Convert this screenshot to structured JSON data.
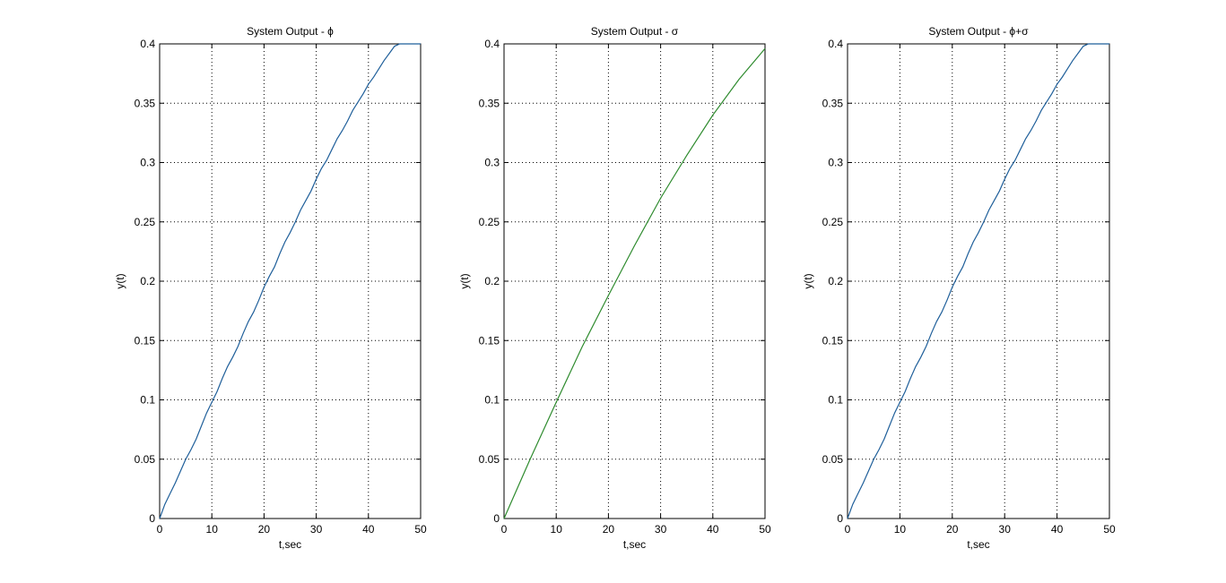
{
  "figure": {
    "background": "#ffffff"
  },
  "chart_data": [
    {
      "type": "line",
      "title": "System Output - ϕ",
      "xlabel": "t,sec",
      "ylabel": "y(t)",
      "xlim": [
        0,
        50
      ],
      "ylim": [
        0,
        0.4
      ],
      "xticks": [
        0,
        10,
        20,
        30,
        40,
        50
      ],
      "yticks": [
        0,
        0.05,
        0.1,
        0.15,
        0.2,
        0.25,
        0.3,
        0.35,
        0.4
      ],
      "xtick_labels": [
        "0",
        "10",
        "20",
        "30",
        "40",
        "50"
      ],
      "ytick_labels": [
        "0",
        "0.05",
        "0.1",
        "0.15",
        "0.2",
        "0.25",
        "0.3",
        "0.35",
        "0.4"
      ],
      "grid": true,
      "series": [
        {
          "color": "#1f5f9a",
          "x": [
            0,
            1,
            2,
            3,
            4,
            5,
            6,
            7,
            8,
            9,
            10,
            11,
            12,
            13,
            14,
            15,
            16,
            17,
            18,
            19,
            20,
            21,
            22,
            23,
            24,
            25,
            26,
            27,
            28,
            29,
            30,
            31,
            32,
            33,
            34,
            35,
            36,
            37,
            38,
            39,
            40,
            41,
            42,
            43,
            44,
            45,
            46,
            47,
            48,
            49,
            50
          ],
          "y": [
            0,
            0.012,
            0.021,
            0.03,
            0.04,
            0.05,
            0.058,
            0.067,
            0.078,
            0.089,
            0.098,
            0.107,
            0.118,
            0.128,
            0.136,
            0.145,
            0.156,
            0.166,
            0.174,
            0.184,
            0.195,
            0.204,
            0.212,
            0.223,
            0.233,
            0.241,
            0.25,
            0.26,
            0.268,
            0.276,
            0.286,
            0.295,
            0.302,
            0.311,
            0.32,
            0.327,
            0.335,
            0.344,
            0.351,
            0.358,
            0.366,
            0.372,
            0.379,
            0.386,
            0.392,
            0.398,
            0.404,
            0.409,
            0.414,
            0.42,
            0.424
          ]
        }
      ]
    },
    {
      "type": "line",
      "title": "System Output - σ",
      "xlabel": "t,sec",
      "ylabel": "y(t)",
      "xlim": [
        0,
        50
      ],
      "ylim": [
        0,
        0.4
      ],
      "xticks": [
        0,
        10,
        20,
        30,
        40,
        50
      ],
      "yticks": [
        0,
        0.05,
        0.1,
        0.15,
        0.2,
        0.25,
        0.3,
        0.35,
        0.4
      ],
      "xtick_labels": [
        "0",
        "10",
        "20",
        "30",
        "40",
        "50"
      ],
      "ytick_labels": [
        "0",
        "0.05",
        "0.1",
        "0.15",
        "0.2",
        "0.25",
        "0.3",
        "0.35",
        "0.4"
      ],
      "grid": true,
      "series": [
        {
          "color": "#2e8b2e",
          "x": [
            0,
            5,
            10,
            15,
            20,
            25,
            30,
            35,
            40,
            45,
            50
          ],
          "y": [
            0,
            0.05,
            0.098,
            0.145,
            0.188,
            0.23,
            0.27,
            0.306,
            0.34,
            0.37,
            0.396
          ]
        }
      ]
    },
    {
      "type": "line",
      "title": "System Output - ϕ+σ",
      "xlabel": "t,sec",
      "ylabel": "y(t)",
      "xlim": [
        0,
        50
      ],
      "ylim": [
        0,
        0.4
      ],
      "xticks": [
        0,
        10,
        20,
        30,
        40,
        50
      ],
      "yticks": [
        0,
        0.05,
        0.1,
        0.15,
        0.2,
        0.25,
        0.3,
        0.35,
        0.4
      ],
      "xtick_labels": [
        "0",
        "10",
        "20",
        "30",
        "40",
        "50"
      ],
      "ytick_labels": [
        "0",
        "0.05",
        "0.1",
        "0.15",
        "0.2",
        "0.25",
        "0.3",
        "0.35",
        "0.4"
      ],
      "grid": true,
      "series": [
        {
          "color": "#1f5f9a",
          "x": [
            0,
            1,
            2,
            3,
            4,
            5,
            6,
            7,
            8,
            9,
            10,
            11,
            12,
            13,
            14,
            15,
            16,
            17,
            18,
            19,
            20,
            21,
            22,
            23,
            24,
            25,
            26,
            27,
            28,
            29,
            30,
            31,
            32,
            33,
            34,
            35,
            36,
            37,
            38,
            39,
            40,
            41,
            42,
            43,
            44,
            45,
            46,
            47,
            48,
            49,
            50
          ],
          "y": [
            0,
            0.012,
            0.021,
            0.03,
            0.04,
            0.05,
            0.058,
            0.067,
            0.078,
            0.089,
            0.098,
            0.107,
            0.118,
            0.128,
            0.136,
            0.145,
            0.156,
            0.166,
            0.174,
            0.184,
            0.195,
            0.204,
            0.212,
            0.223,
            0.233,
            0.241,
            0.25,
            0.26,
            0.268,
            0.276,
            0.286,
            0.295,
            0.302,
            0.311,
            0.32,
            0.327,
            0.335,
            0.344,
            0.351,
            0.358,
            0.366,
            0.372,
            0.379,
            0.386,
            0.392,
            0.398,
            0.404,
            0.409,
            0.414,
            0.42,
            0.424
          ]
        }
      ]
    }
  ]
}
